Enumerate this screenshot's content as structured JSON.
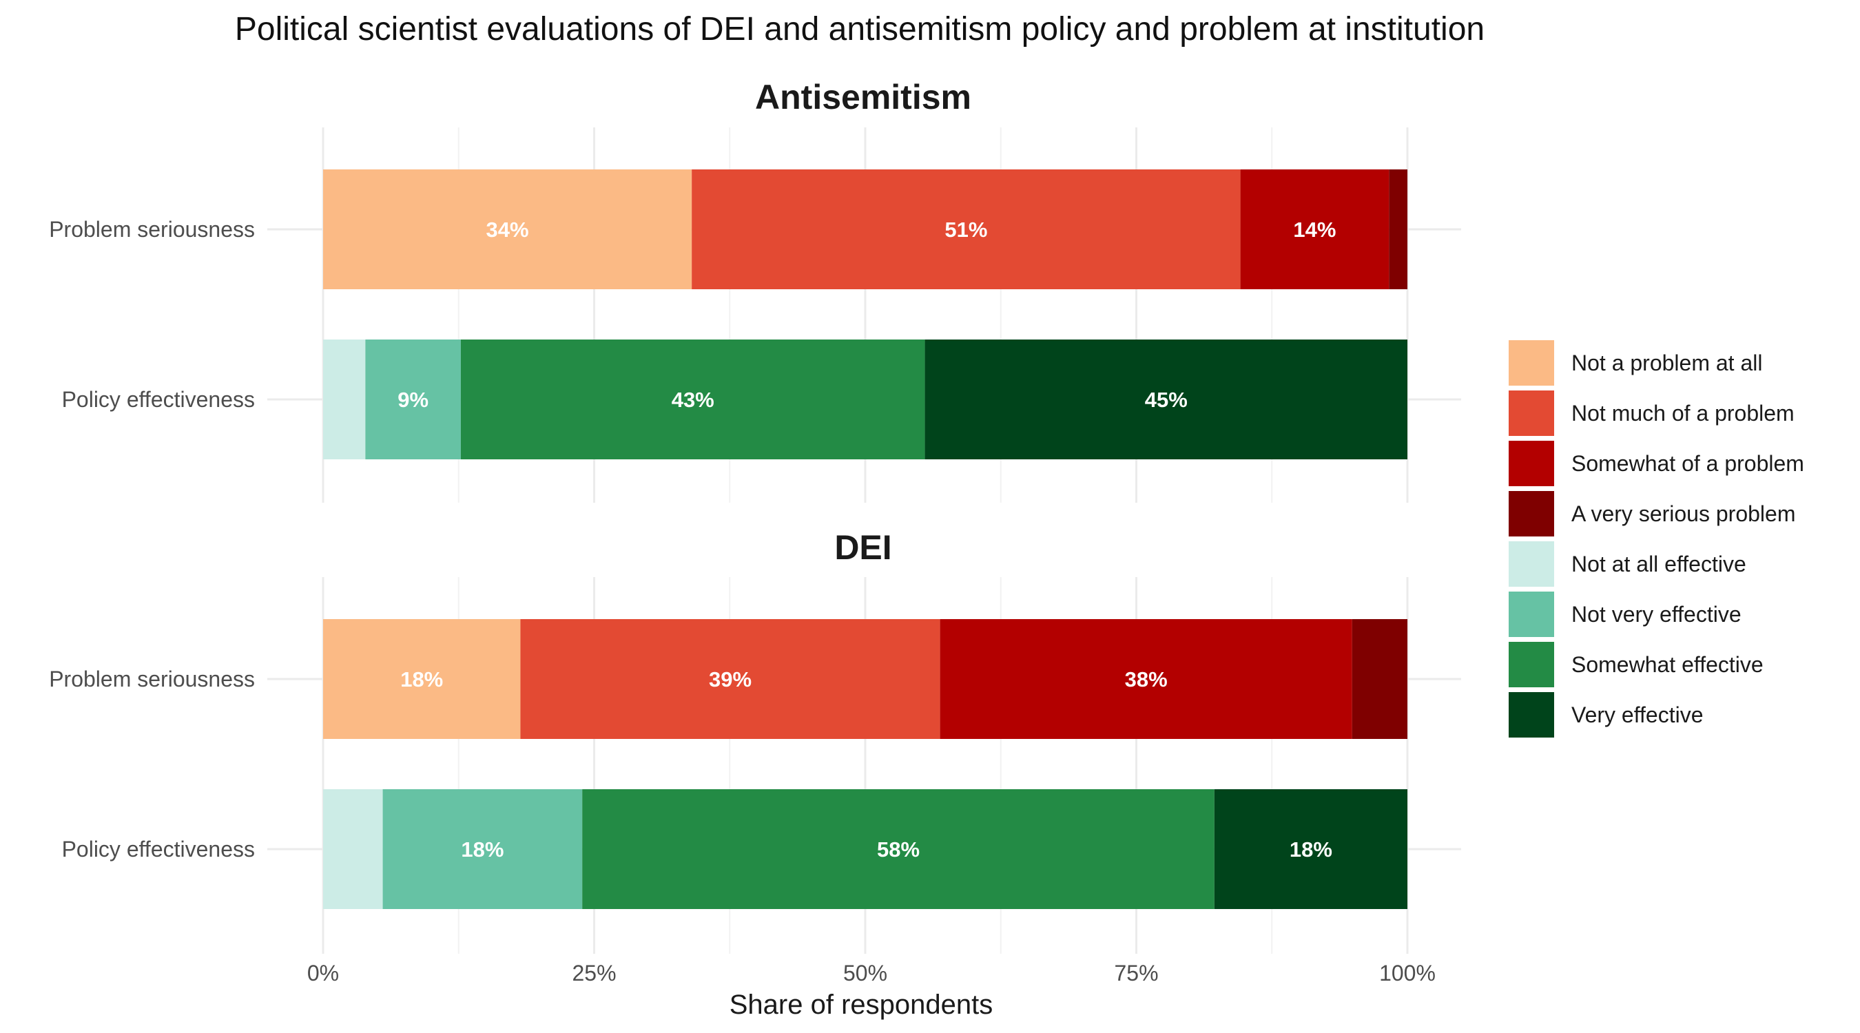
{
  "chart_data": {
    "type": "bar",
    "orientation": "horizontal",
    "stacked": true,
    "title": "Political scientist evaluations of DEI and antisemitism policy and problem at institution",
    "xlabel": "Share of respondents",
    "ylabel": "",
    "xlim": [
      0,
      1
    ],
    "x_ticks": [
      "0%",
      "25%",
      "50%",
      "75%",
      "100%"
    ],
    "grid": true,
    "legend_position": "right",
    "legend": [
      {
        "label": "Not a problem at all",
        "color": "#FBBA85"
      },
      {
        "label": "Not much of a problem",
        "color": "#E34A33"
      },
      {
        "label": "Somewhat of a problem",
        "color": "#B30000"
      },
      {
        "label": "A very serious problem",
        "color": "#7F0000"
      },
      {
        "label": "Not at all effective",
        "color": "#CCECE6"
      },
      {
        "label": "Not very effective",
        "color": "#66C2A4"
      },
      {
        "label": "Somewhat effective",
        "color": "#238B45"
      },
      {
        "label": "Very effective",
        "color": "#00441B"
      }
    ],
    "panels": [
      {
        "title": "Antisemitism",
        "rows": [
          {
            "category": "Problem seriousness",
            "segments": [
              {
                "series": "Not a problem at all",
                "value": 0.34,
                "label": "34%"
              },
              {
                "series": "Not much of a problem",
                "value": 0.506,
                "label": "51%"
              },
              {
                "series": "Somewhat of a problem",
                "value": 0.137,
                "label": "14%"
              },
              {
                "series": "A very serious problem",
                "value": 0.017,
                "label": ""
              }
            ]
          },
          {
            "category": "Policy effectiveness",
            "segments": [
              {
                "series": "Not at all effective",
                "value": 0.039,
                "label": ""
              },
              {
                "series": "Not very effective",
                "value": 0.088,
                "label": "9%"
              },
              {
                "series": "Somewhat effective",
                "value": 0.428,
                "label": "43%"
              },
              {
                "series": "Very effective",
                "value": 0.445,
                "label": "45%"
              }
            ]
          }
        ]
      },
      {
        "title": "DEI",
        "rows": [
          {
            "category": "Problem seriousness",
            "segments": [
              {
                "series": "Not a problem at all",
                "value": 0.182,
                "label": "18%"
              },
              {
                "series": "Not much of a problem",
                "value": 0.387,
                "label": "39%"
              },
              {
                "series": "Somewhat of a problem",
                "value": 0.38,
                "label": "38%"
              },
              {
                "series": "A very serious problem",
                "value": 0.051,
                "label": ""
              }
            ]
          },
          {
            "category": "Policy effectiveness",
            "segments": [
              {
                "series": "Not at all effective",
                "value": 0.055,
                "label": ""
              },
              {
                "series": "Not very effective",
                "value": 0.184,
                "label": "18%"
              },
              {
                "series": "Somewhat effective",
                "value": 0.583,
                "label": "58%"
              },
              {
                "series": "Very effective",
                "value": 0.178,
                "label": "18%"
              }
            ]
          }
        ]
      }
    ]
  }
}
